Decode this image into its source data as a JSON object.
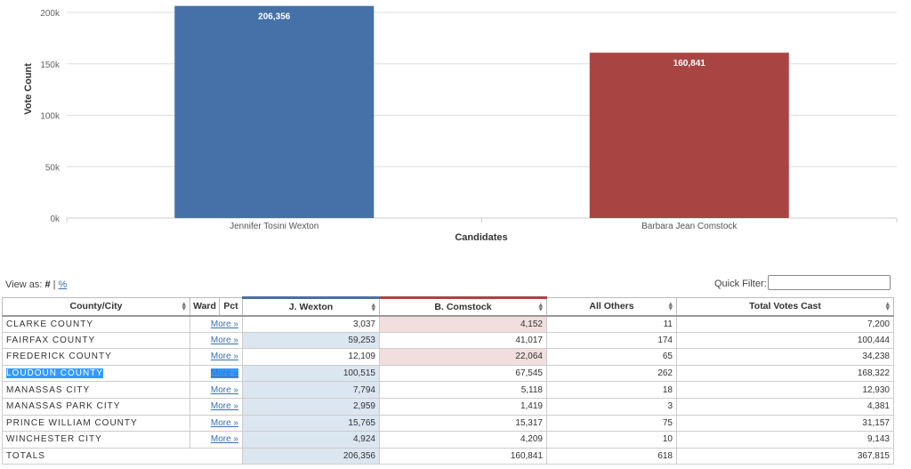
{
  "chart_data": {
    "type": "bar",
    "categories": [
      "Jennifer Tosini Wexton",
      "Barbara Jean Comstock"
    ],
    "values": [
      206356,
      160841
    ],
    "value_labels": [
      "206,356",
      "160,841"
    ],
    "colors": [
      "#4571a8",
      "#a84543"
    ],
    "xlabel": "Candidates",
    "ylabel": "Vote Count",
    "ylim": [
      0,
      200000
    ],
    "yticks": [
      0,
      50000,
      100000,
      150000,
      200000
    ],
    "ytick_labels": [
      "0k",
      "50k",
      "100k",
      "150k",
      "200k"
    ],
    "grid": true
  },
  "controls": {
    "view_as_label": "View as:",
    "view_hash": "#",
    "view_sep": "|",
    "view_pct": "%",
    "quick_filter_label": "Quick Filter:"
  },
  "table": {
    "headers": {
      "county": "County/City",
      "ward": "Ward",
      "pct": "Pct",
      "wexton": "J. Wexton",
      "comstock": "B. Comstock",
      "others": "All Others",
      "total": "Total Votes Cast"
    },
    "more_label": "More »",
    "rows": [
      {
        "name": "CLARKE COUNTY",
        "wexton": "3,037",
        "comstock": "4,152",
        "others": "11",
        "total": "7,200",
        "winner": "comstock"
      },
      {
        "name": "FAIRFAX COUNTY",
        "wexton": "59,253",
        "comstock": "41,017",
        "others": "174",
        "total": "100,444",
        "winner": "wexton"
      },
      {
        "name": "FREDERICK COUNTY",
        "wexton": "12,109",
        "comstock": "22,064",
        "others": "65",
        "total": "34,238",
        "winner": "comstock"
      },
      {
        "name": "LOUDOUN COUNTY",
        "wexton": "100,515",
        "comstock": "67,545",
        "others": "262",
        "total": "168,322",
        "winner": "wexton",
        "selected": true
      },
      {
        "name": "MANASSAS CITY",
        "wexton": "7,794",
        "comstock": "5,118",
        "others": "18",
        "total": "12,930",
        "winner": "wexton"
      },
      {
        "name": "MANASSAS PARK CITY",
        "wexton": "2,959",
        "comstock": "1,419",
        "others": "3",
        "total": "4,381",
        "winner": "wexton"
      },
      {
        "name": "PRINCE WILLIAM COUNTY",
        "wexton": "15,765",
        "comstock": "15,317",
        "others": "75",
        "total": "31,157",
        "winner": "wexton"
      },
      {
        "name": "WINCHESTER CITY",
        "wexton": "4,924",
        "comstock": "4,209",
        "others": "10",
        "total": "9,143",
        "winner": "wexton"
      }
    ],
    "totals": {
      "name": "TOTALS",
      "wexton": "206,356",
      "comstock": "160,841",
      "others": "618",
      "total": "367,815"
    }
  }
}
